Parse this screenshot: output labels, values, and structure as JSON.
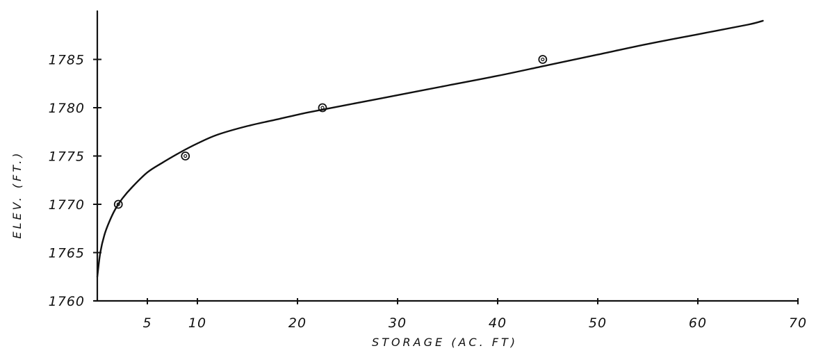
{
  "chart_data": {
    "type": "scatter",
    "title": "",
    "xlabel": "STORAGE (AC. FT)",
    "ylabel": "ELEV. (FT.)",
    "xlim": [
      0,
      70
    ],
    "ylim": [
      1760,
      1790
    ],
    "x_ticks": [
      5,
      10,
      20,
      30,
      40,
      50,
      60,
      70
    ],
    "x_tick_labels": [
      "5",
      "10",
      "20",
      "30",
      "40",
      "50",
      "60",
      "70"
    ],
    "y_ticks": [
      1760,
      1765,
      1770,
      1775,
      1780,
      1785
    ],
    "y_tick_labels": [
      "1760",
      "1765",
      "1770",
      "1775",
      "1780",
      "1785"
    ],
    "grid": false,
    "series": [
      {
        "kind": "points",
        "x": [
          2.1,
          8.8,
          22.5,
          44.5
        ],
        "y": [
          1770,
          1775,
          1780,
          1785
        ]
      },
      {
        "kind": "fitted-curve",
        "x": [
          0,
          0.3,
          0.7,
          1.2,
          1.8,
          2.5,
          3.5,
          5,
          6.5,
          8.5,
          10,
          12,
          15,
          18,
          21,
          25,
          30,
          35,
          40,
          45,
          50,
          55,
          60,
          65,
          66.5
        ],
        "y": [
          1762.5,
          1765,
          1766.8,
          1768.2,
          1769.5,
          1770.6,
          1771.8,
          1773.3,
          1774.3,
          1775.5,
          1776.3,
          1777.2,
          1778.1,
          1778.8,
          1779.5,
          1780.3,
          1781.3,
          1782.3,
          1783.3,
          1784.4,
          1785.5,
          1786.6,
          1787.6,
          1788.6,
          1789
        ]
      }
    ]
  }
}
